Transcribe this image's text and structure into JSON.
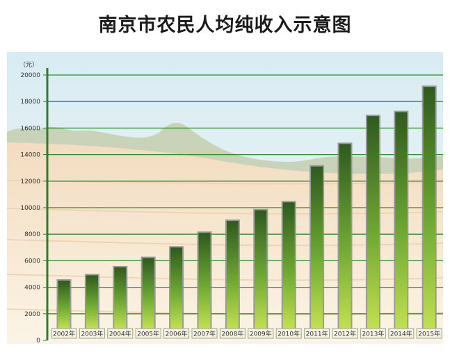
{
  "title": "南京市农民人均纯收入示意图",
  "chart_data": {
    "type": "bar",
    "title": "南京市农民人均纯收入示意图",
    "unit_label": "（元）",
    "categories": [
      "2002年",
      "2003年",
      "2004年",
      "2005年",
      "2006年",
      "2007年",
      "2008年",
      "2009年",
      "2010年",
      "2011年",
      "2012年",
      "2013年",
      "2014年",
      "2015年"
    ],
    "values": [
      4500,
      4900,
      5500,
      6200,
      7000,
      8100,
      9000,
      9800,
      10400,
      13100,
      14800,
      16900,
      17200,
      19100
    ],
    "yticks": [
      0,
      2000,
      4000,
      6000,
      8000,
      10000,
      12000,
      14000,
      16000,
      18000,
      20000
    ],
    "ylim": [
      0,
      20000
    ],
    "grid": true,
    "legend": "none",
    "colors": {
      "bar_top": "#2f5a1f",
      "bar_bottom": "#b7dc4a",
      "grid": "#2e8b2e",
      "axis": "#2f7a2f",
      "sky": "#dfeff6",
      "field": "#f6e8d2"
    }
  }
}
